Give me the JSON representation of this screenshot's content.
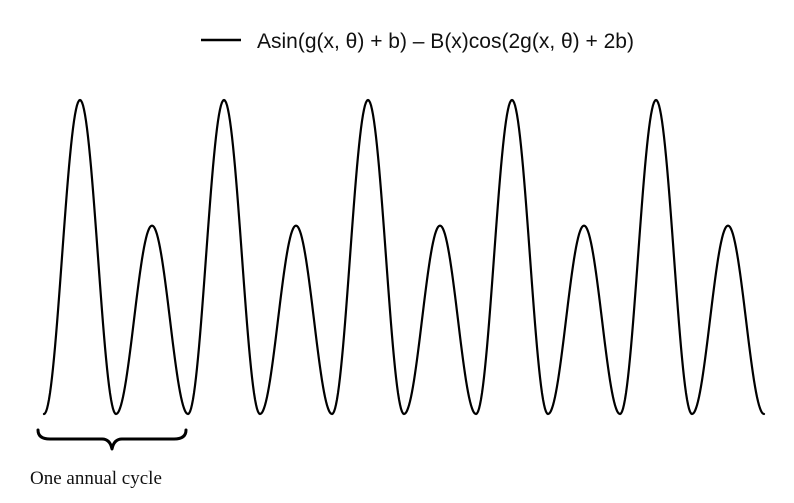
{
  "chart_data": {
    "type": "line",
    "title": "",
    "xlabel": "",
    "ylabel": "",
    "axes_visible": false,
    "grid": false,
    "legend_placement": "top-center",
    "series": [
      {
        "name": "Asin(g(x, θ) + b) – B(x)cos(2g(x, θ) + 2b)",
        "color": "#000000",
        "cycles": 5,
        "pattern_per_cycle": "tall peak, trough, short peak, trough",
        "tall_peak": 1.0,
        "short_peak": 0.6,
        "trough": 0.0
      }
    ],
    "annotations": [
      {
        "text": "One annual cycle",
        "type": "brace",
        "spans_cycles": 1
      }
    ]
  }
}
